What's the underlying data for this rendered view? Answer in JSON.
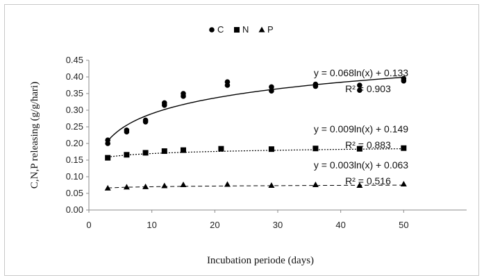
{
  "chart_data": {
    "type": "scatter",
    "title": "",
    "xlabel": "Incubation periode (days)",
    "ylabel": "C,N,P releasing (g/g/hari)",
    "xlim": [
      0,
      60
    ],
    "ylim": [
      0,
      0.45
    ],
    "xticks": [
      0,
      10,
      20,
      30,
      40,
      50
    ],
    "yticks": [
      0,
      0.05,
      0.1,
      0.15,
      0.2,
      0.25,
      0.3,
      0.35,
      0.4,
      0.45
    ],
    "xtick_labels": [
      "0",
      "10",
      "20",
      "30",
      "40",
      "50"
    ],
    "ytick_labels": [
      "0.00",
      "0.05",
      "0.10",
      "0.15",
      "0.20",
      "0.25",
      "0.30",
      "0.35",
      "0.40",
      "0.45"
    ],
    "grid": false,
    "legend_position": "top-left",
    "series": [
      {
        "name": "C",
        "marker": "circle",
        "line_style": "solid",
        "points": [
          [
            3,
            0.21
          ],
          [
            3,
            0.2
          ],
          [
            6,
            0.24
          ],
          [
            6,
            0.235
          ],
          [
            9,
            0.27
          ],
          [
            9,
            0.265
          ],
          [
            12,
            0.322
          ],
          [
            12,
            0.315
          ],
          [
            15,
            0.35
          ],
          [
            15,
            0.342
          ],
          [
            22,
            0.385
          ],
          [
            22,
            0.375
          ],
          [
            29,
            0.37
          ],
          [
            29,
            0.358
          ],
          [
            36,
            0.378
          ],
          [
            36,
            0.372
          ],
          [
            43,
            0.375
          ],
          [
            43,
            0.36
          ],
          [
            50,
            0.395
          ],
          [
            50,
            0.388
          ]
        ],
        "fit": {
          "a": 0.068,
          "b": 0.133,
          "equation": "y = 0.068ln(x) + 0.133",
          "r2_label": "R² = 0.903"
        }
      },
      {
        "name": "N",
        "marker": "square",
        "line_style": "dotted",
        "points": [
          [
            3,
            0.157
          ],
          [
            6,
            0.166
          ],
          [
            9,
            0.172
          ],
          [
            12,
            0.177
          ],
          [
            15,
            0.18
          ],
          [
            21,
            0.184
          ],
          [
            29,
            0.183
          ],
          [
            36,
            0.185
          ],
          [
            43,
            0.184
          ],
          [
            50,
            0.186
          ]
        ],
        "fit": {
          "a": 0.009,
          "b": 0.149,
          "equation": "y = 0.009ln(x) + 0.149",
          "r2_label": "R² = 0.883"
        }
      },
      {
        "name": "P",
        "marker": "triangle",
        "line_style": "dashed",
        "points": [
          [
            3,
            0.066
          ],
          [
            6,
            0.069
          ],
          [
            9,
            0.07
          ],
          [
            12,
            0.073
          ],
          [
            15,
            0.076
          ],
          [
            22,
            0.077
          ],
          [
            29,
            0.074
          ],
          [
            36,
            0.076
          ],
          [
            43,
            0.074
          ],
          [
            50,
            0.078
          ]
        ],
        "fit": {
          "a": 0.003,
          "b": 0.063,
          "equation": "y = 0.003ln(x) + 0.063",
          "r2_label": "R² = 0.516"
        }
      }
    ]
  }
}
